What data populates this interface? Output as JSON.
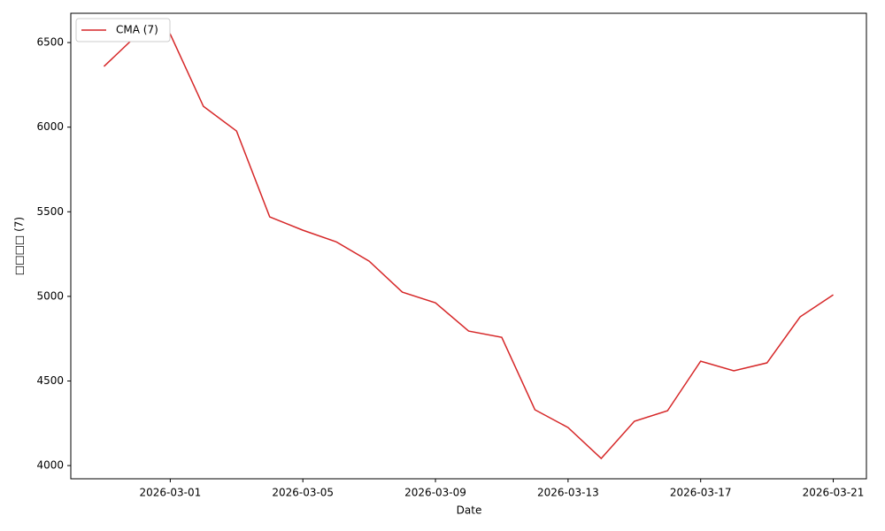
{
  "chart_data": {
    "type": "line",
    "x_label": "Date",
    "y_label": "□□□□ (7)",
    "x": [
      "2026-02-27",
      "2026-02-28",
      "2026-03-01",
      "2026-03-02",
      "2026-03-03",
      "2026-03-04",
      "2026-03-05",
      "2026-03-06",
      "2026-03-07",
      "2026-03-08",
      "2026-03-09",
      "2026-03-10",
      "2026-03-11",
      "2026-03-12",
      "2026-03-13",
      "2026-03-14",
      "2026-03-15",
      "2026-03-16",
      "2026-03-17",
      "2026-03-18",
      "2026-03-19",
      "2026-03-20",
      "2026-03-21"
    ],
    "series": [
      {
        "name": "CMA (7)",
        "color": "#d62728",
        "values": [
          6359,
          6545,
          6550,
          6123,
          5977,
          5470,
          5391,
          5323,
          5208,
          5025,
          4962,
          4795,
          4758,
          4330,
          4225,
          4042,
          4262,
          4324,
          4617,
          4560,
          4607,
          4879,
          5009
        ]
      }
    ],
    "xlim": [
      "2026-02-26",
      "2026-03-22"
    ],
    "xticks": [
      "2026-03-01",
      "2026-03-05",
      "2026-03-09",
      "2026-03-13",
      "2026-03-17",
      "2026-03-21"
    ],
    "ylim": [
      3922,
      6673
    ],
    "yticks": [
      4000,
      4500,
      5000,
      5500,
      6000,
      6500
    ],
    "grid": false,
    "legend": "upper-left"
  }
}
